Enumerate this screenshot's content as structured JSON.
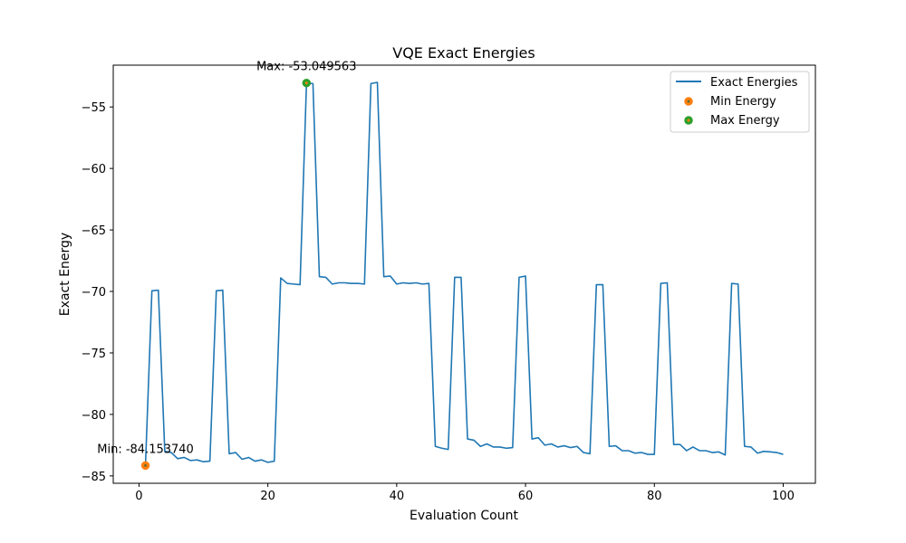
{
  "chart_data": {
    "type": "line",
    "title": "VQE Exact Energies",
    "xlabel": "Evaluation Count",
    "ylabel": "Exact Energy",
    "xlim": [
      -4,
      105
    ],
    "ylim": [
      -85.6,
      -51.6
    ],
    "x_ticks": [
      0,
      20,
      40,
      60,
      80,
      100
    ],
    "y_ticks": [
      -85,
      -80,
      -75,
      -70,
      -65,
      -60,
      -55
    ],
    "grid": false,
    "legend_position": "top-right",
    "series": [
      {
        "name": "Exact Energies",
        "color": "#1f77b4",
        "x": [
          1,
          2,
          3,
          4,
          5,
          6,
          7,
          8,
          9,
          10,
          11,
          12,
          13,
          14,
          15,
          16,
          17,
          18,
          19,
          20,
          21,
          22,
          23,
          24,
          25,
          26,
          27,
          28,
          29,
          30,
          31,
          32,
          33,
          34,
          35,
          36,
          37,
          38,
          39,
          40,
          41,
          42,
          43,
          44,
          45,
          46,
          47,
          48,
          49,
          50,
          51,
          52,
          53,
          54,
          55,
          56,
          57,
          58,
          59,
          60,
          61,
          62,
          63,
          64,
          65,
          66,
          67,
          68,
          69,
          70,
          71,
          72,
          73,
          74,
          75,
          76,
          77,
          78,
          79,
          80,
          81,
          82,
          83,
          84,
          85,
          86,
          87,
          88,
          89,
          90,
          91,
          92,
          93,
          94,
          95,
          96,
          97,
          98,
          99,
          100
        ],
        "y": [
          -84.15374,
          -69.95,
          -69.9,
          -83.0,
          -83.1,
          -83.6,
          -83.5,
          -83.75,
          -83.7,
          -83.85,
          -83.8,
          -69.95,
          -69.9,
          -83.2,
          -83.1,
          -83.65,
          -83.5,
          -83.8,
          -83.7,
          -83.9,
          -83.8,
          -68.9,
          -69.35,
          -69.4,
          -69.45,
          -53.049563,
          -53.1,
          -68.8,
          -68.85,
          -69.4,
          -69.3,
          -69.3,
          -69.35,
          -69.35,
          -69.4,
          -53.1,
          -53.0,
          -68.8,
          -68.75,
          -69.4,
          -69.3,
          -69.35,
          -69.3,
          -69.4,
          -69.35,
          -82.6,
          -82.75,
          -82.85,
          -68.85,
          -68.85,
          -82.0,
          -82.1,
          -82.6,
          -82.4,
          -82.65,
          -82.65,
          -82.75,
          -82.7,
          -68.85,
          -68.75,
          -82.0,
          -81.9,
          -82.5,
          -82.4,
          -82.65,
          -82.55,
          -82.7,
          -82.6,
          -83.1,
          -83.2,
          -69.45,
          -69.45,
          -82.6,
          -82.55,
          -82.95,
          -82.95,
          -83.15,
          -83.1,
          -83.25,
          -83.25,
          -69.35,
          -69.3,
          -82.45,
          -82.45,
          -82.95,
          -82.65,
          -82.95,
          -82.95,
          -83.1,
          -83.05,
          -83.3,
          -69.35,
          -69.4,
          -82.6,
          -82.65,
          -83.15,
          -83.0,
          -83.05,
          -83.1,
          -83.25
        ]
      }
    ],
    "markers": [
      {
        "name": "Min Energy",
        "x": 1,
        "y": -84.15374,
        "edge_color": "#ff7f0e",
        "face_color": "#ff7f0e",
        "center_color": "#6b6b2a",
        "label": "Min: -84.153740"
      },
      {
        "name": "Max Energy",
        "x": 26,
        "y": -53.049563,
        "edge_color": "#2ca02c",
        "face_color": "#2ca02c",
        "center_color": "#ff7f0e",
        "label": "Max: -53.049563"
      }
    ],
    "legend": [
      "Exact Energies",
      "Min Energy",
      "Max Energy"
    ]
  }
}
